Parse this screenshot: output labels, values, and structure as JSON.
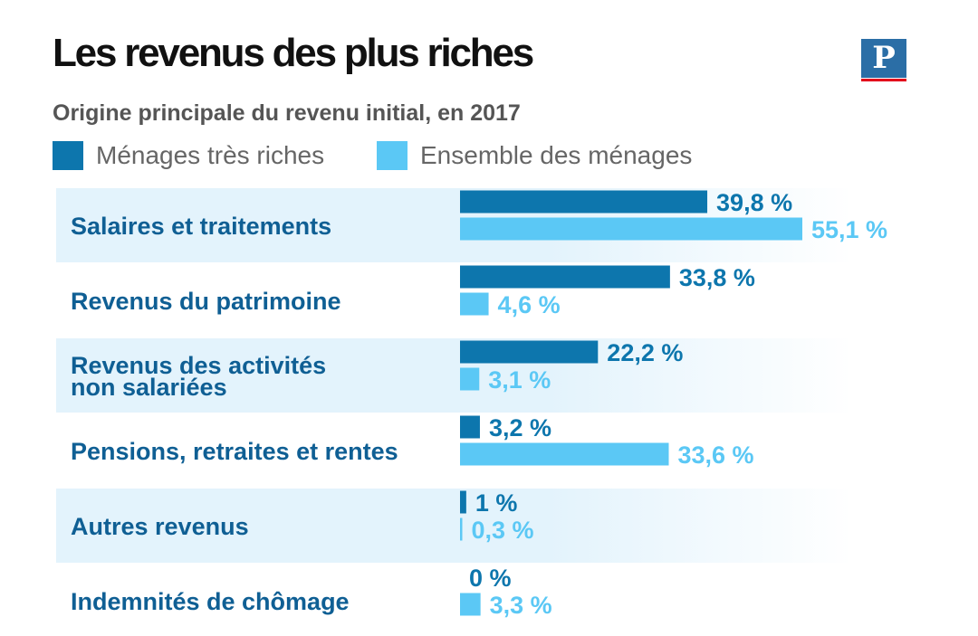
{
  "title": "Les revenus des plus riches",
  "subtitle": "Origine principale du revenu initial, en 2017",
  "logo": {
    "letter": "P"
  },
  "colors": {
    "dark": "#0d76ad",
    "light": "#5bc8f5",
    "band": "#e3f3fc"
  },
  "chart_data": {
    "type": "bar",
    "orientation": "horizontal",
    "title": "Les revenus des plus riches",
    "subtitle": "Origine principale du revenu initial, en 2017",
    "categories": [
      [
        "Salaires et traitements"
      ],
      [
        "Revenus du patrimoine"
      ],
      [
        "Revenus des activités",
        "non salariées"
      ],
      [
        "Pensions, retraites et rentes"
      ],
      [
        "Autres revenus"
      ],
      [
        "Indemnités de chômage"
      ]
    ],
    "series": [
      {
        "name": "Ménages très riches",
        "color": "#0d76ad",
        "values": [
          39.8,
          33.8,
          22.2,
          3.2,
          1,
          0
        ],
        "labels": [
          "39,8 %",
          "33,8 %",
          "22,2 %",
          "3,2 %",
          "1 %",
          "0 %"
        ]
      },
      {
        "name": "Ensemble des ménages",
        "color": "#5bc8f5",
        "values": [
          55.1,
          4.6,
          3.1,
          33.6,
          0.3,
          3.3
        ],
        "labels": [
          "55,1 %",
          "4,6 %",
          "3,1 %",
          "33,6 %",
          "0,3 %",
          "3,3 %"
        ]
      }
    ],
    "xlim": [
      0,
      55.1
    ],
    "grid": false,
    "legend": "top-left"
  }
}
